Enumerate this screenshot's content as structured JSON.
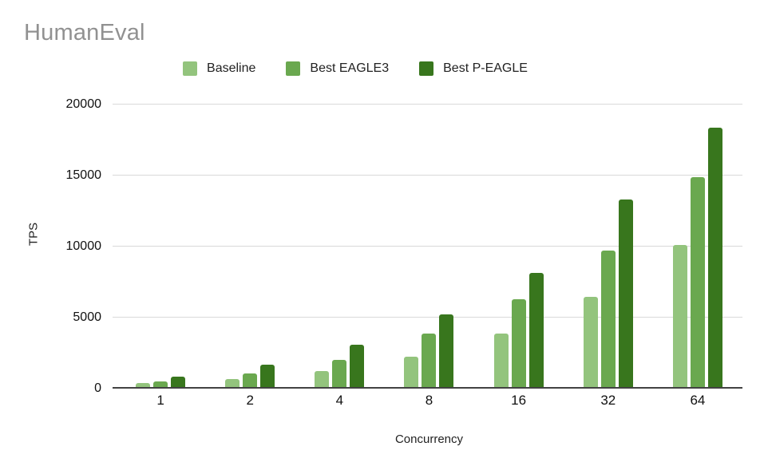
{
  "title": "HumanEval",
  "colors": {
    "title_text": "#919191",
    "gridline": "#d9d9d9",
    "axis_line": "#424242",
    "baseline_series": "#93c47d",
    "eagle3_series": "#6aa84f",
    "p_eagle_series": "#38761d"
  },
  "chart_data": {
    "type": "bar",
    "title": "HumanEval",
    "categories": [
      "1",
      "2",
      "4",
      "8",
      "16",
      "32",
      "64"
    ],
    "series": [
      {
        "name": "Baseline",
        "color": "#93c47d",
        "values": [
          400,
          680,
          1250,
          2250,
          3850,
          6450,
          10100
        ]
      },
      {
        "name": "Best EAGLE3",
        "color": "#6aa84f",
        "values": [
          520,
          1050,
          2050,
          3880,
          6280,
          9700,
          14900
        ]
      },
      {
        "name": "Best P-EAGLE",
        "color": "#38761d",
        "values": [
          870,
          1700,
          3080,
          5250,
          8150,
          13300,
          18350
        ]
      }
    ],
    "xlabel": "Concurrency",
    "ylabel": "TPS",
    "ylim": [
      0,
      20000
    ],
    "yticks": [
      0,
      5000,
      10000,
      15000,
      20000
    ],
    "grid": true,
    "legend_position": "top"
  }
}
